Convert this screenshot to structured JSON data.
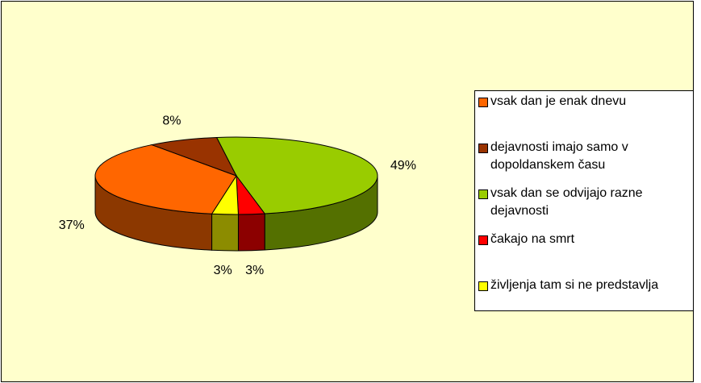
{
  "chart_data": {
    "type": "pie3d",
    "categories": [
      "vsak dan je enak dnevu",
      "dejavnosti imajo samo v dopoldanskem času",
      "vsak dan se odvijajo razne dejavnosti",
      "čakajo na smrt",
      "življenja tam si ne predstavlja"
    ],
    "values": [
      37,
      8,
      49,
      3,
      3
    ],
    "value_labels": [
      "37%",
      "8%",
      "49%",
      "3%",
      "3%"
    ],
    "colors": [
      "#ff6600",
      "#993300",
      "#99cc00",
      "#ff0000",
      "#ffff00"
    ],
    "start_angle": 190,
    "legend": "right"
  }
}
